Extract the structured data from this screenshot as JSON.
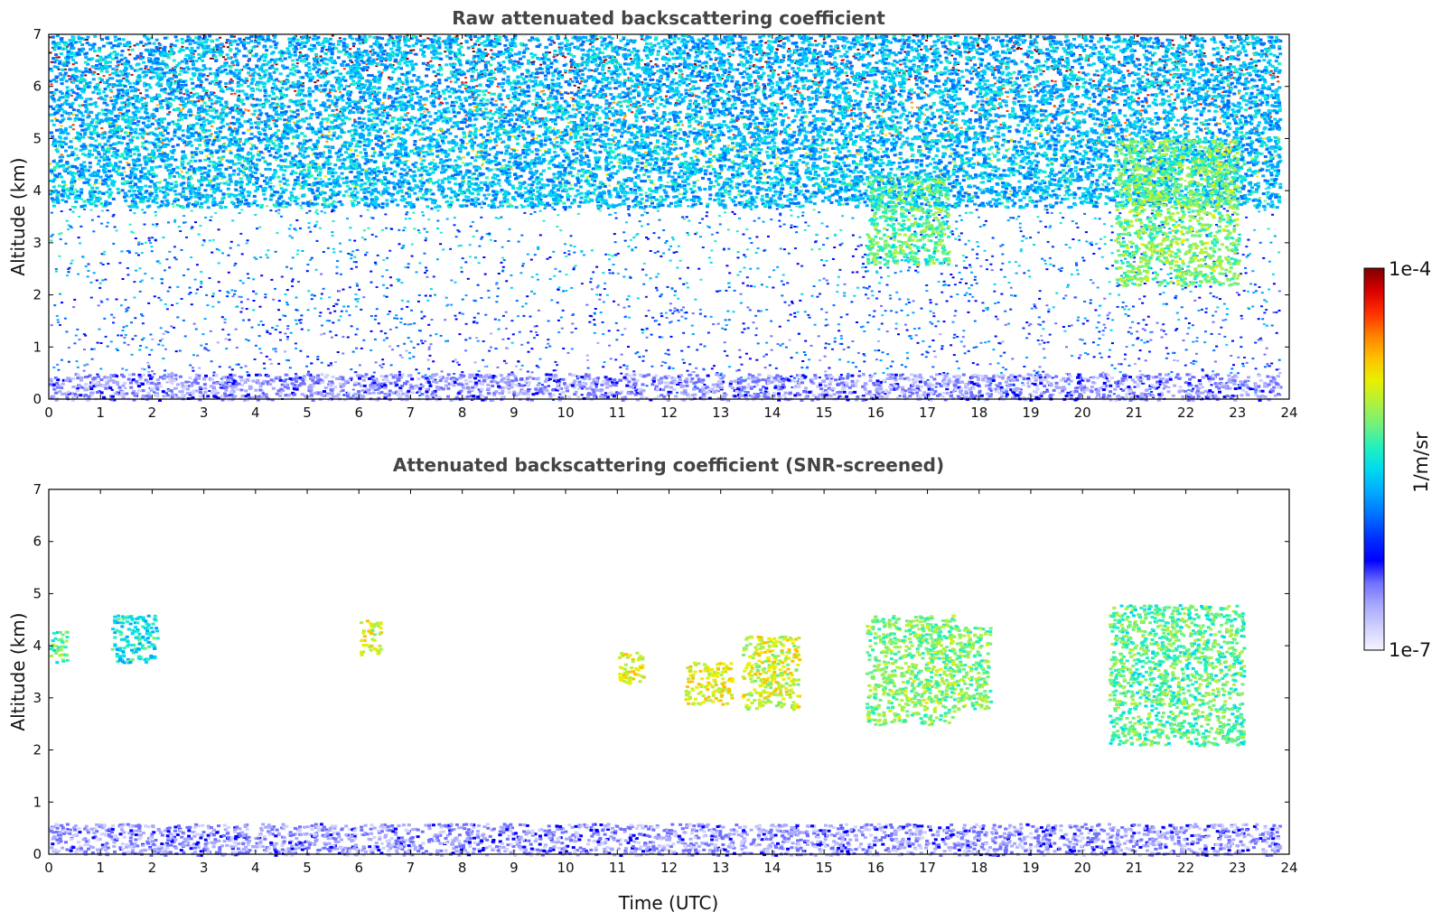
{
  "chart_data": [
    {
      "type": "heatmap",
      "title": "Raw attenuated backscattering coefficient",
      "xlabel": "",
      "ylabel": "Altitude (km)",
      "xlim": [
        0,
        24
      ],
      "ylim": [
        0,
        7
      ],
      "xticks": [
        "0",
        "1",
        "2",
        "3",
        "4",
        "5",
        "6",
        "7",
        "8",
        "9",
        "10",
        "11",
        "12",
        "13",
        "14",
        "15",
        "16",
        "17",
        "18",
        "19",
        "20",
        "21",
        "22",
        "23",
        "24"
      ],
      "yticks": [
        "0",
        "1",
        "2",
        "3",
        "4",
        "5",
        "6",
        "7"
      ],
      "features": [
        {
          "name": "boundary layer",
          "x": [
            0,
            23.8
          ],
          "y": [
            0,
            0.5
          ],
          "value": 3e-07
        },
        {
          "name": "noise-dominated upper region",
          "x": [
            0,
            23.8
          ],
          "y": [
            3.7,
            7
          ],
          "value": 2e-06
        },
        {
          "name": "cirrus streak",
          "x": [
            15.8,
            17.4
          ],
          "y": [
            2.6,
            4.3
          ],
          "value": 5e-06
        },
        {
          "name": "cirrus streak",
          "x": [
            20.6,
            23.0
          ],
          "y": [
            2.2,
            5.0
          ],
          "value": 6e-06
        }
      ]
    },
    {
      "type": "heatmap",
      "title": "Attenuated backscattering coefficient (SNR-screened)",
      "xlabel": "Time (UTC)",
      "ylabel": "Altitude (km)",
      "xlim": [
        0,
        24
      ],
      "ylim": [
        0,
        7
      ],
      "xticks": [
        "0",
        "1",
        "2",
        "3",
        "4",
        "5",
        "6",
        "7",
        "8",
        "9",
        "10",
        "11",
        "12",
        "13",
        "14",
        "15",
        "16",
        "17",
        "18",
        "19",
        "20",
        "21",
        "22",
        "23",
        "24"
      ],
      "yticks": [
        "0",
        "1",
        "2",
        "3",
        "4",
        "5",
        "6",
        "7"
      ],
      "features": [
        {
          "name": "boundary layer",
          "x": [
            0,
            23.8
          ],
          "y": [
            0,
            0.6
          ],
          "value": 3e-07
        },
        {
          "name": "cloud patch",
          "x": [
            0,
            0.35
          ],
          "y": [
            3.7,
            4.3
          ],
          "value": 5e-06
        },
        {
          "name": "cloud patch",
          "x": [
            1.2,
            2.1
          ],
          "y": [
            3.7,
            4.6
          ],
          "value": 3e-06
        },
        {
          "name": "cloud patch",
          "x": [
            6.0,
            6.4
          ],
          "y": [
            3.8,
            4.5
          ],
          "value": 1.2e-05
        },
        {
          "name": "cloud patch",
          "x": [
            11.0,
            11.5
          ],
          "y": [
            3.3,
            3.9
          ],
          "value": 1.2e-05
        },
        {
          "name": "cloud patch",
          "x": [
            12.3,
            13.2
          ],
          "y": [
            2.9,
            3.7
          ],
          "value": 1.2e-05
        },
        {
          "name": "cloud patch",
          "x": [
            13.4,
            14.5
          ],
          "y": [
            2.8,
            4.2
          ],
          "value": 1e-05
        },
        {
          "name": "cirrus streak",
          "x": [
            15.8,
            17.5
          ],
          "y": [
            2.5,
            4.6
          ],
          "value": 6e-06
        },
        {
          "name": "cirrus streak",
          "x": [
            17.4,
            18.2
          ],
          "y": [
            2.8,
            4.4
          ],
          "value": 6e-06
        },
        {
          "name": "cirrus streak",
          "x": [
            20.5,
            23.1
          ],
          "y": [
            2.1,
            4.8
          ],
          "value": 5e-06
        }
      ]
    }
  ],
  "colorbar": {
    "label": "1/m/sr",
    "min_label": "1e-7",
    "max_label": "1e-4",
    "colors": [
      "#f4f4ff",
      "#d0d0ff",
      "#a8a8ff",
      "#7070ff",
      "#0000ff",
      "#0030ff",
      "#0070ff",
      "#00a8ff",
      "#00d8f0",
      "#20f0c0",
      "#70f080",
      "#b0f040",
      "#e8f000",
      "#ffc000",
      "#ff8000",
      "#ff3000",
      "#d80000",
      "#800000"
    ],
    "scale": "log"
  }
}
